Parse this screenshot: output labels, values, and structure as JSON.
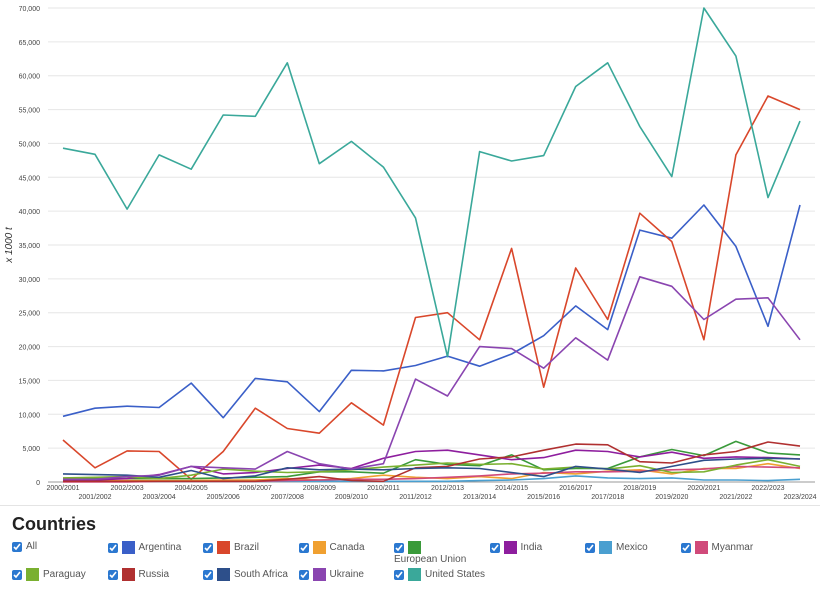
{
  "chart_data": {
    "type": "line",
    "y_label": "x 1000 t",
    "legend_title": "Countries",
    "legend_all": "All",
    "categories": [
      "2000/2001",
      "2001/2002",
      "2002/2003",
      "2003/2004",
      "2004/2005",
      "2005/2006",
      "2006/2007",
      "2007/2008",
      "2008/2009",
      "2009/2010",
      "2010/2011",
      "2011/2012",
      "2012/2013",
      "2013/2014",
      "2014/2015",
      "2015/2016",
      "2016/2017",
      "2017/2018",
      "2018/2019",
      "2019/2020",
      "2020/2021",
      "2021/2022",
      "2022/2023",
      "2023/2024"
    ],
    "ylim": [
      0,
      70000
    ],
    "yticks": [
      {
        "value": 0,
        "label": "0"
      },
      {
        "value": 5000,
        "label": "5,000"
      },
      {
        "value": 10000,
        "label": "10,000"
      },
      {
        "value": 15000,
        "label": "15,000"
      },
      {
        "value": 20000,
        "label": "20,000"
      },
      {
        "value": 25000,
        "label": "25,000"
      },
      {
        "value": 30000,
        "label": "30,000"
      },
      {
        "value": 35000,
        "label": "35,000"
      },
      {
        "value": 40000,
        "label": "40,000"
      },
      {
        "value": 45000,
        "label": "45,000"
      },
      {
        "value": 50000,
        "label": "50,000"
      },
      {
        "value": 55000,
        "label": "55,000"
      },
      {
        "value": 60000,
        "label": "60,000"
      },
      {
        "value": 65000,
        "label": "65,000"
      },
      {
        "value": 70000,
        "label": "70,000"
      }
    ],
    "grid": true,
    "series": [
      {
        "name": "Argentina",
        "color": "#3a5fc8",
        "values": [
          9700,
          10900,
          11200,
          11000,
          14600,
          9500,
          15300,
          14800,
          10400,
          16500,
          16400,
          17200,
          18600,
          17100,
          18900,
          21600,
          26000,
          22500,
          37200,
          36000,
          40900,
          34800,
          23000,
          40900
        ]
      },
      {
        "name": "Brazil",
        "color": "#d9472b",
        "values": [
          6200,
          2100,
          4600,
          4500,
          400,
          4500,
          10900,
          7900,
          7200,
          11700,
          8400,
          24300,
          25000,
          21000,
          34500,
          14000,
          31600,
          24000,
          39700,
          35500,
          21000,
          48300,
          57000,
          55000
        ]
      },
      {
        "name": "Canada",
        "color": "#f0a030",
        "values": [
          200,
          200,
          200,
          200,
          200,
          300,
          300,
          500,
          300,
          500,
          1000,
          700,
          500,
          800,
          500,
          1400,
          1200,
          1600,
          1800,
          1200,
          2000,
          2000,
          2700,
          2000
        ]
      },
      {
        "name": "European Union",
        "color": "#3a9a3a",
        "values": [
          500,
          500,
          500,
          500,
          500,
          600,
          700,
          800,
          1500,
          1500,
          1300,
          3300,
          2600,
          2400,
          4000,
          1800,
          2000,
          2000,
          3700,
          4800,
          3900,
          6000,
          4300,
          4000
        ]
      },
      {
        "name": "India",
        "color": "#8e1e9e",
        "values": [
          300,
          300,
          500,
          1100,
          2300,
          1200,
          1400,
          2000,
          2500,
          2000,
          3500,
          4500,
          4700,
          4000,
          3300,
          3600,
          4700,
          4500,
          3700,
          4400,
          3500,
          3700,
          3600,
          3400
        ]
      },
      {
        "name": "Mexico",
        "color": "#4a9fd0",
        "values": [
          100,
          100,
          100,
          100,
          100,
          100,
          100,
          100,
          100,
          100,
          100,
          100,
          100,
          200,
          300,
          500,
          900,
          600,
          500,
          600,
          300,
          300,
          200,
          400
        ]
      },
      {
        "name": "Myanmar",
        "color": "#d04a7a",
        "values": [
          0,
          0,
          0,
          100,
          100,
          100,
          100,
          200,
          300,
          400,
          400,
          500,
          700,
          900,
          1200,
          1300,
          1500,
          1500,
          1600,
          1800,
          1900,
          2300,
          2200,
          2100
        ]
      },
      {
        "name": "Paraguay",
        "color": "#7ab030",
        "values": [
          600,
          700,
          800,
          500,
          1000,
          1900,
          1600,
          1400,
          1500,
          1800,
          2200,
          2500,
          2800,
          2600,
          2700,
          1900,
          2200,
          1900,
          2400,
          1400,
          1500,
          2500,
          3300,
          2300
        ]
      },
      {
        "name": "Russia",
        "color": "#b03030",
        "values": [
          100,
          100,
          100,
          100,
          100,
          100,
          100,
          400,
          800,
          200,
          100,
          2100,
          2300,
          3400,
          3700,
          4700,
          5600,
          5500,
          3000,
          2800,
          4000,
          4500,
          5900,
          5300
        ]
      },
      {
        "name": "South Africa",
        "color": "#2d4f8a",
        "values": [
          1200,
          1100,
          1000,
          700,
          1700,
          500,
          900,
          2100,
          1800,
          1900,
          1800,
          2000,
          2100,
          2000,
          1400,
          800,
          2300,
          1900,
          1400,
          2300,
          3200,
          3400,
          3500,
          3400
        ]
      },
      {
        "name": "Ukraine",
        "color": "#8a45b0",
        "values": [
          400,
          400,
          800,
          1000,
          2300,
          2100,
          1900,
          4500,
          2700,
          1900,
          2700,
          15200,
          12700,
          20000,
          19700,
          16800,
          21300,
          18000,
          30300,
          28900,
          24000,
          27000,
          27200,
          21000
        ]
      },
      {
        "name": "United States",
        "color": "#3aa89a",
        "values": [
          49300,
          48400,
          40300,
          48300,
          46200,
          54200,
          54000,
          61900,
          47000,
          50300,
          46500,
          39000,
          18500,
          48800,
          47400,
          48200,
          58400,
          61900,
          52500,
          45100,
          70000,
          62900,
          42000,
          53300
        ]
      }
    ]
  }
}
